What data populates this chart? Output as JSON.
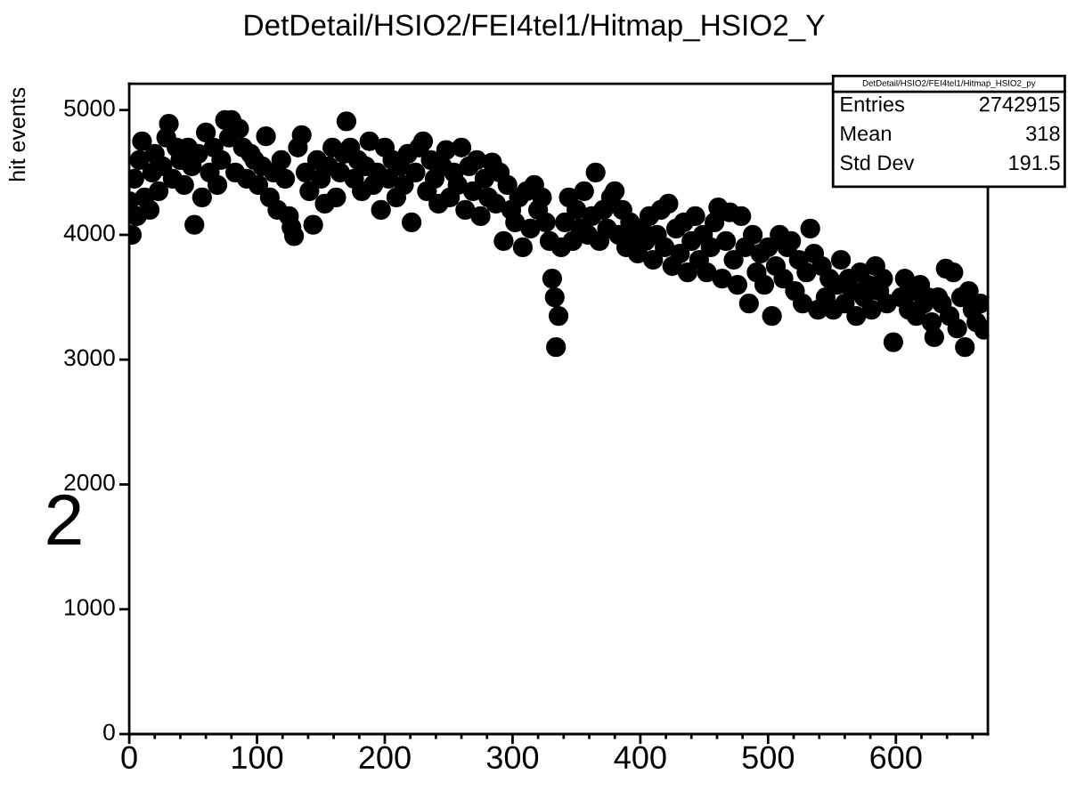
{
  "chart_data": {
    "type": "scatter",
    "title": "DetDetail/HSIO2/FEI4tel1/Hitmap_HSIO2_Y",
    "ylabel": "hit events",
    "annotations": [
      "2",
      "DetDetail/HSIO2/FEI4tel1/Hitmap_HSIO2_py",
      "Entries",
      "2742915",
      "Mean",
      "318",
      "Std Dev",
      "191.5"
    ],
    "xlim": [
      0,
      672
    ],
    "xticks": [
      0,
      100,
      200,
      300,
      400,
      500,
      600
    ],
    "ylim": [
      0,
      5210
    ],
    "yticks": [
      0,
      1000,
      2000,
      3000,
      4000,
      5000
    ],
    "marker": "circle",
    "grid": false,
    "legend": false,
    "series": [
      {
        "color": "#000000",
        "x": [
          0,
          2,
          4,
          6,
          8,
          10,
          12,
          16,
          18,
          20,
          23,
          26,
          29,
          31,
          34,
          37,
          40,
          43,
          46,
          49,
          51,
          54,
          57,
          60,
          63,
          66,
          69,
          72,
          75,
          78,
          80,
          83,
          86,
          89,
          92,
          95,
          98,
          101,
          104,
          107,
          110,
          113,
          116,
          119,
          122,
          125,
          127,
          129,
          132,
          135,
          138,
          141,
          144,
          147,
          150,
          153,
          156,
          159,
          162,
          165,
          168,
          170,
          173,
          176,
          179,
          182,
          185,
          188,
          191,
          194,
          197,
          200,
          203,
          206,
          209,
          212,
          215,
          218,
          221,
          224,
          227,
          230,
          233,
          236,
          239,
          242,
          245,
          248,
          251,
          254,
          257,
          260,
          263,
          266,
          269,
          272,
          275,
          278,
          281,
          284,
          287,
          290,
          293,
          296,
          299,
          302,
          305,
          308,
          311,
          314,
          317,
          320,
          323,
          326,
          329,
          331,
          333,
          334,
          336,
          338,
          341,
          344,
          347,
          350,
          353,
          356,
          359,
          362,
          365,
          368,
          371,
          374,
          377,
          380,
          383,
          386,
          389,
          392,
          395,
          398,
          401,
          404,
          407,
          410,
          413,
          416,
          419,
          422,
          425,
          428,
          431,
          434,
          437,
          440,
          443,
          446,
          449,
          452,
          455,
          458,
          461,
          464,
          467,
          470,
          473,
          476,
          479,
          482,
          485,
          488,
          491,
          494,
          497,
          500,
          503,
          506,
          509,
          512,
          515,
          518,
          521,
          524,
          527,
          530,
          533,
          536,
          539,
          542,
          545,
          548,
          551,
          554,
          557,
          560,
          563,
          566,
          569,
          572,
          575,
          578,
          581,
          584,
          587,
          590,
          593,
          598,
          604,
          607,
          610,
          613,
          616,
          619,
          622,
          625,
          628,
          630,
          633,
          636,
          639,
          642,
          645,
          648,
          651,
          654,
          657,
          660,
          663,
          666,
          669
        ],
        "values": [
          4270,
          4000,
          4450,
          4150,
          4600,
          4750,
          4300,
          4200,
          4500,
          4650,
          4350,
          4550,
          4780,
          4890,
          4450,
          4700,
          4600,
          4400,
          4700,
          4550,
          4080,
          4650,
          4300,
          4820,
          4500,
          4700,
          4400,
          4600,
          4920,
          4780,
          4920,
          4500,
          4850,
          4700,
          4450,
          4650,
          4600,
          4400,
          4550,
          4790,
          4300,
          4500,
          4200,
          4600,
          4450,
          4150,
          4060,
          3990,
          4700,
          4800,
          4500,
          4350,
          4080,
          4600,
          4450,
          4250,
          4550,
          4700,
          4300,
          4500,
          4650,
          4910,
          4700,
          4450,
          4600,
          4350,
          4550,
          4750,
          4400,
          4500,
          4200,
          4700,
          4450,
          4600,
          4300,
          4550,
          4400,
          4650,
          4100,
          4500,
          4700,
          4750,
          4350,
          4600,
          4450,
          4250,
          4550,
          4680,
          4300,
          4500,
          4400,
          4700,
          4200,
          4550,
          4350,
          4600,
          4150,
          4450,
          4300,
          4580,
          4250,
          4500,
          3950,
          4400,
          4200,
          4100,
          4300,
          3900,
          4350,
          4050,
          4400,
          4200,
          4300,
          4100,
          3950,
          3650,
          3500,
          3100,
          3350,
          3900,
          4100,
          4300,
          3950,
          4200,
          4050,
          4350,
          4000,
          4150,
          4500,
          3950,
          4200,
          4050,
          4300,
          4350,
          4000,
          4200,
          3900,
          4100,
          4000,
          3850,
          4050,
          3950,
          4150,
          3800,
          4000,
          4200,
          3900,
          4250,
          3750,
          4050,
          3850,
          4100,
          3700,
          3950,
          4150,
          3800,
          4000,
          3700,
          3900,
          4100,
          4220,
          3650,
          3950,
          4180,
          3800,
          3600,
          4150,
          3900,
          3450,
          4000,
          3700,
          3850,
          3600,
          3900,
          3350,
          3750,
          4000,
          3650,
          3900,
          3950,
          3550,
          3800,
          3450,
          3700,
          4050,
          3850,
          3400,
          3750,
          3500,
          3650,
          3400,
          3600,
          3800,
          3450,
          3650,
          3550,
          3350,
          3700,
          3500,
          3600,
          3400,
          3750,
          3550,
          3650,
          3450,
          3140,
          3500,
          3650,
          3400,
          3550,
          3350,
          3600,
          3450,
          3500,
          3300,
          3180,
          3500,
          3450,
          3730,
          3350,
          3700,
          3250,
          3500,
          3100,
          3550,
          3400,
          3300,
          3450,
          3240
        ]
      }
    ]
  }
}
